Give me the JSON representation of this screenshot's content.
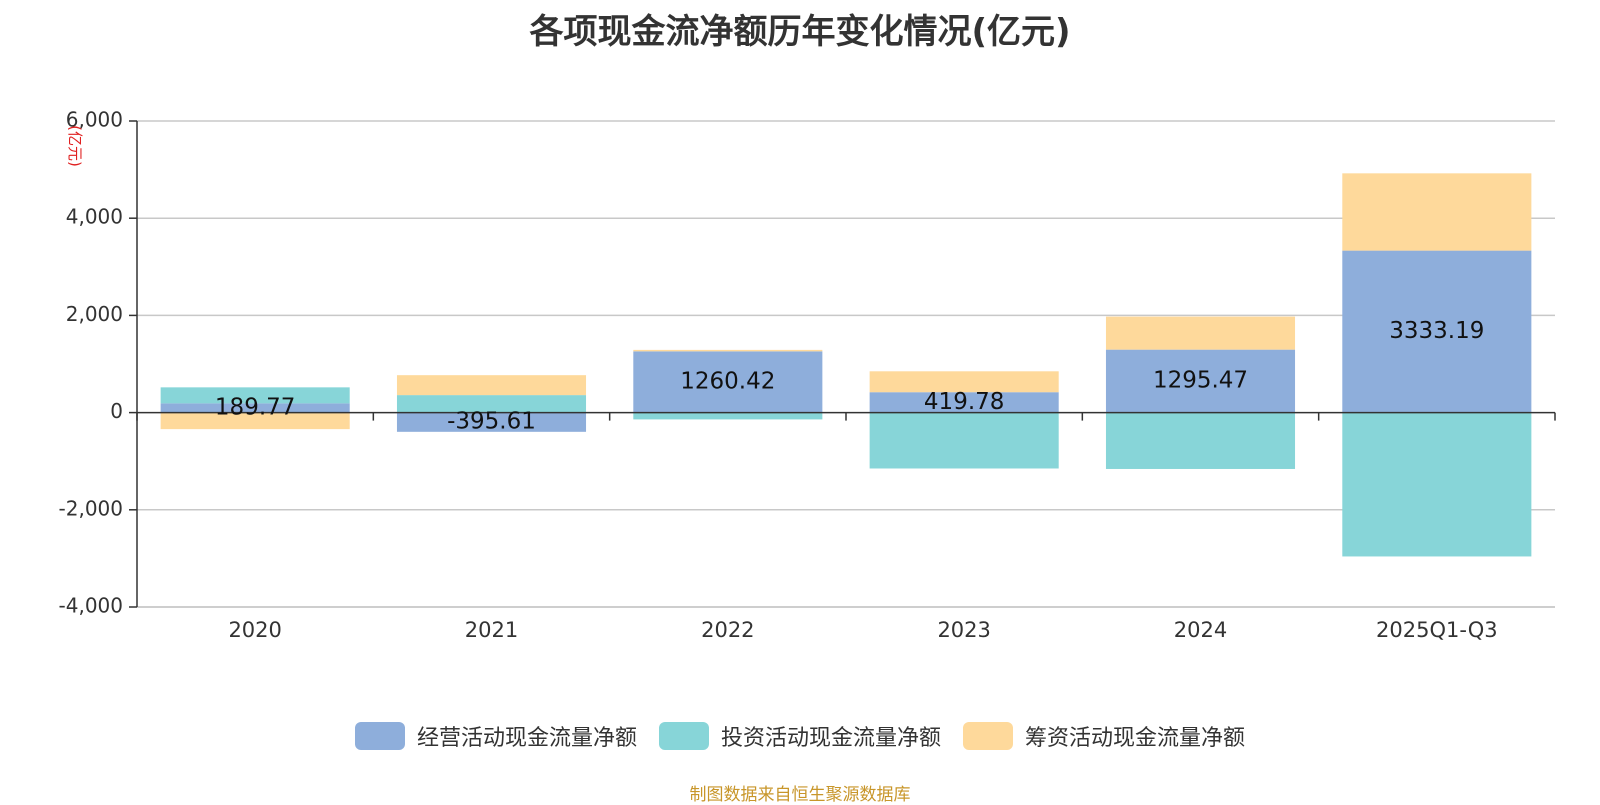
{
  "chart_data": {
    "type": "bar",
    "stacked": true,
    "title": "各项现金流净额历年变化情况(亿元)",
    "ylabel": "(亿元)",
    "ylim": [
      -4000,
      6000
    ],
    "yticks": [
      6000,
      4000,
      2000,
      0,
      -2000,
      -4000
    ],
    "ytick_labels": [
      "6,000",
      "4,000",
      "2,000",
      "0",
      "-2,000",
      "-4,000"
    ],
    "categories": [
      "2020",
      "2021",
      "2022",
      "2023",
      "2024",
      "2025Q1-Q3"
    ],
    "grid": true,
    "legend_position": "bottom-center",
    "series": [
      {
        "name": "经营活动现金流量净额",
        "color": "#8eaedb",
        "values": [
          189.77,
          -395.61,
          1260.42,
          419.78,
          1295.47,
          3333.19
        ],
        "labels": [
          "189.77",
          "-395.61",
          "1260.42",
          "419.78",
          "1295.47",
          "3333.19"
        ]
      },
      {
        "name": "投资活动现金流量净额",
        "color": "#87d5d8",
        "values": [
          330,
          360,
          -140,
          -1150,
          -1160,
          -2960
        ]
      },
      {
        "name": "筹资活动现金流量净额",
        "color": "#fed99b",
        "values": [
          -340,
          410,
          30,
          430,
          680,
          1590
        ]
      }
    ]
  },
  "source": "制图数据来自恒生聚源数据库"
}
